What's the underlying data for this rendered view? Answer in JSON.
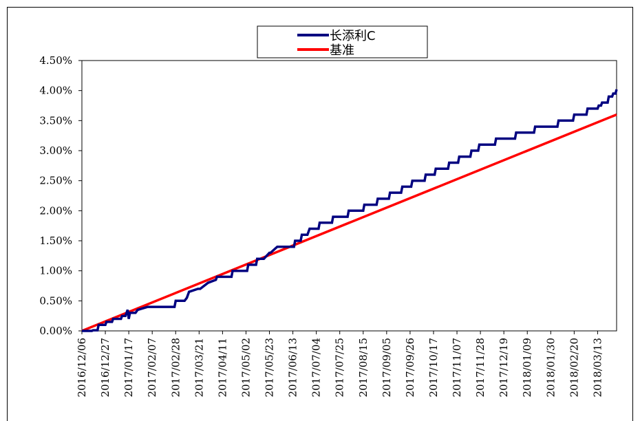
{
  "chart_data": {
    "type": "line",
    "title": "",
    "xlabel": "",
    "ylabel": "",
    "ylim": [
      0,
      0.045
    ],
    "y_ticks": [
      "0.00%",
      "0.50%",
      "1.00%",
      "1.50%",
      "2.00%",
      "2.50%",
      "3.00%",
      "3.50%",
      "4.00%",
      "4.50%"
    ],
    "x_start": "2016/12/06",
    "x_end": "2018/03/30",
    "x_ticks": [
      "2016/12/06",
      "2016/12/27",
      "2017/01/17",
      "2017/02/07",
      "2017/02/28",
      "2017/03/21",
      "2017/04/11",
      "2017/05/02",
      "2017/05/23",
      "2017/06/13",
      "2017/07/04",
      "2017/07/25",
      "2017/08/15",
      "2017/09/05",
      "2017/09/26",
      "2017/10/17",
      "2017/11/07",
      "2017/11/28",
      "2017/12/19",
      "2018/01/09",
      "2018/01/30",
      "2018/02/20",
      "2018/03/13"
    ],
    "grid": false,
    "legend_position": "top-center",
    "series": [
      {
        "name": "长添利C",
        "color": "#000080",
        "x": [
          "2016/12/06",
          "2016/12/15",
          "2016/12/16",
          "2016/12/20",
          "2016/12/21",
          "2016/12/27",
          "2016/12/28",
          "2017/01/02",
          "2017/01/03",
          "2017/01/10",
          "2017/01/11",
          "2017/01/14",
          "2017/01/16",
          "2017/01/17",
          "2017/01/18",
          "2017/01/23",
          "2017/01/25",
          "2017/02/03",
          "2017/02/27",
          "2017/02/28",
          "2017/03/08",
          "2017/03/10",
          "2017/03/12",
          "2017/03/20",
          "2017/03/22",
          "2017/03/29",
          "2017/04/05",
          "2017/04/06",
          "2017/04/19",
          "2017/04/20",
          "2017/05/03",
          "2017/05/04",
          "2017/05/11",
          "2017/05/12",
          "2017/05/18",
          "2017/05/23",
          "2017/05/24",
          "2017/05/30",
          "2017/06/08",
          "2017/06/14",
          "2017/06/15",
          "2017/06/19",
          "2017/06/20",
          "2017/06/21",
          "2017/06/26",
          "2017/06/28",
          "2017/07/06",
          "2017/07/07",
          "2017/07/18",
          "2017/07/19",
          "2017/08/01",
          "2017/08/02",
          "2017/08/15",
          "2017/08/16",
          "2017/08/27",
          "2017/08/28",
          "2017/09/07",
          "2017/09/08",
          "2017/09/18",
          "2017/09/19",
          "2017/09/27",
          "2017/09/28",
          "2017/10/09",
          "2017/10/10",
          "2017/10/18",
          "2017/10/19",
          "2017/10/30",
          "2017/10/31",
          "2017/11/08",
          "2017/11/09",
          "2017/11/19",
          "2017/11/20",
          "2017/11/26",
          "2017/11/27",
          "2017/12/02",
          "2017/12/03",
          "2017/12/11",
          "2017/12/12",
          "2017/12/29",
          "2017/12/30",
          "2018/01/15",
          "2018/01/16",
          "2018/01/20",
          "2018/01/21",
          "2018/02/05",
          "2018/02/06",
          "2018/02/19",
          "2018/02/20",
          "2018/03/03",
          "2018/03/04",
          "2018/03/13",
          "2018/03/14",
          "2018/03/16",
          "2018/03/17",
          "2018/03/22",
          "2018/03/23",
          "2018/03/26",
          "2018/03/27",
          "2018/03/29",
          "2018/03/30"
        ],
        "values": [
          0,
          0,
          0.0001,
          0.0001,
          0.001,
          0.001,
          0.0015,
          0.0015,
          0.002,
          0.002,
          0.0025,
          0.0025,
          0.0035,
          0.002,
          0.003,
          0.003,
          0.0035,
          0.004,
          0.004,
          0.005,
          0.005,
          0.0055,
          0.0065,
          0.007,
          0.007,
          0.008,
          0.0085,
          0.009,
          0.009,
          0.01,
          0.01,
          0.011,
          0.011,
          0.012,
          0.012,
          0.013,
          0.013,
          0.014,
          0.014,
          0.014,
          0.015,
          0.015,
          0.015,
          0.016,
          0.016,
          0.017,
          0.017,
          0.018,
          0.018,
          0.019,
          0.019,
          0.02,
          0.02,
          0.021,
          0.021,
          0.022,
          0.022,
          0.023,
          0.023,
          0.024,
          0.024,
          0.025,
          0.025,
          0.026,
          0.026,
          0.027,
          0.027,
          0.028,
          0.028,
          0.029,
          0.029,
          0.03,
          0.03,
          0.031,
          0.031,
          0.031,
          0.031,
          0.032,
          0.032,
          0.033,
          0.033,
          0.034,
          0.034,
          0.034,
          0.034,
          0.035,
          0.035,
          0.036,
          0.036,
          0.037,
          0.037,
          0.0375,
          0.0375,
          0.038,
          0.038,
          0.039,
          0.039,
          0.0395,
          0.0395,
          0.0402
        ]
      },
      {
        "name": "基准",
        "color": "#ff0000",
        "x": [
          "2016/12/06",
          "2018/03/30"
        ],
        "values": [
          0,
          0.036
        ]
      }
    ]
  }
}
